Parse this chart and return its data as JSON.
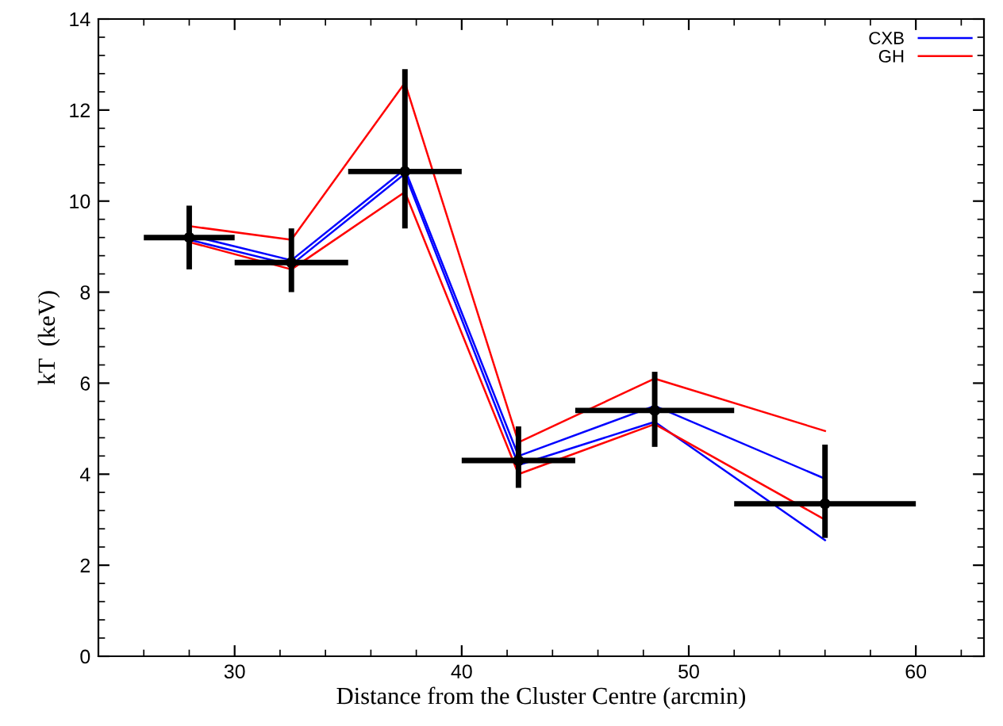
{
  "chart_data": {
    "type": "line",
    "xlabel": "Distance from the Cluster Centre (arcmin)",
    "ylabel": "kT  (keV)",
    "x": [
      28,
      32.5,
      37.5,
      42.5,
      48.5,
      56
    ],
    "series": [
      {
        "name": "CXB",
        "color": "#0000ff",
        "values": [
          9.25,
          8.7,
          10.7,
          4.4,
          5.5,
          3.9
        ]
      },
      {
        "color": "#0000ff",
        "values": [
          9.15,
          8.6,
          10.6,
          4.2,
          5.15,
          2.55
        ]
      },
      {
        "name": "GH",
        "color": "#ff0000",
        "values": [
          9.45,
          9.15,
          12.6,
          4.7,
          6.1,
          4.95
        ]
      },
      {
        "color": "#ff0000",
        "values": [
          9.1,
          8.5,
          10.2,
          4.0,
          5.1,
          3.0
        ]
      },
      {
        "type": "scatter",
        "color": "#000000",
        "marker": "circle",
        "values": [
          9.2,
          8.65,
          10.65,
          4.3,
          5.4,
          3.35
        ],
        "errors": [
          [
            8.5,
            9.9
          ],
          [
            8.0,
            9.4
          ],
          [
            9.4,
            12.9
          ],
          [
            3.7,
            5.05
          ],
          [
            4.6,
            6.25
          ],
          [
            2.6,
            4.65
          ]
        ],
        "xerrors": [
          [
            26,
            30
          ],
          [
            30,
            35
          ],
          [
            35,
            40
          ],
          [
            40,
            45
          ],
          [
            45,
            52
          ],
          [
            52,
            60
          ]
        ]
      }
    ],
    "xlim": [
      24,
      63
    ],
    "xticks": [
      30,
      40,
      50,
      60
    ],
    "ylim": [
      0,
      14
    ],
    "yticks": [
      0,
      2,
      4,
      6,
      8,
      10,
      12,
      14
    ],
    "legend": "top right",
    "grid": false
  }
}
